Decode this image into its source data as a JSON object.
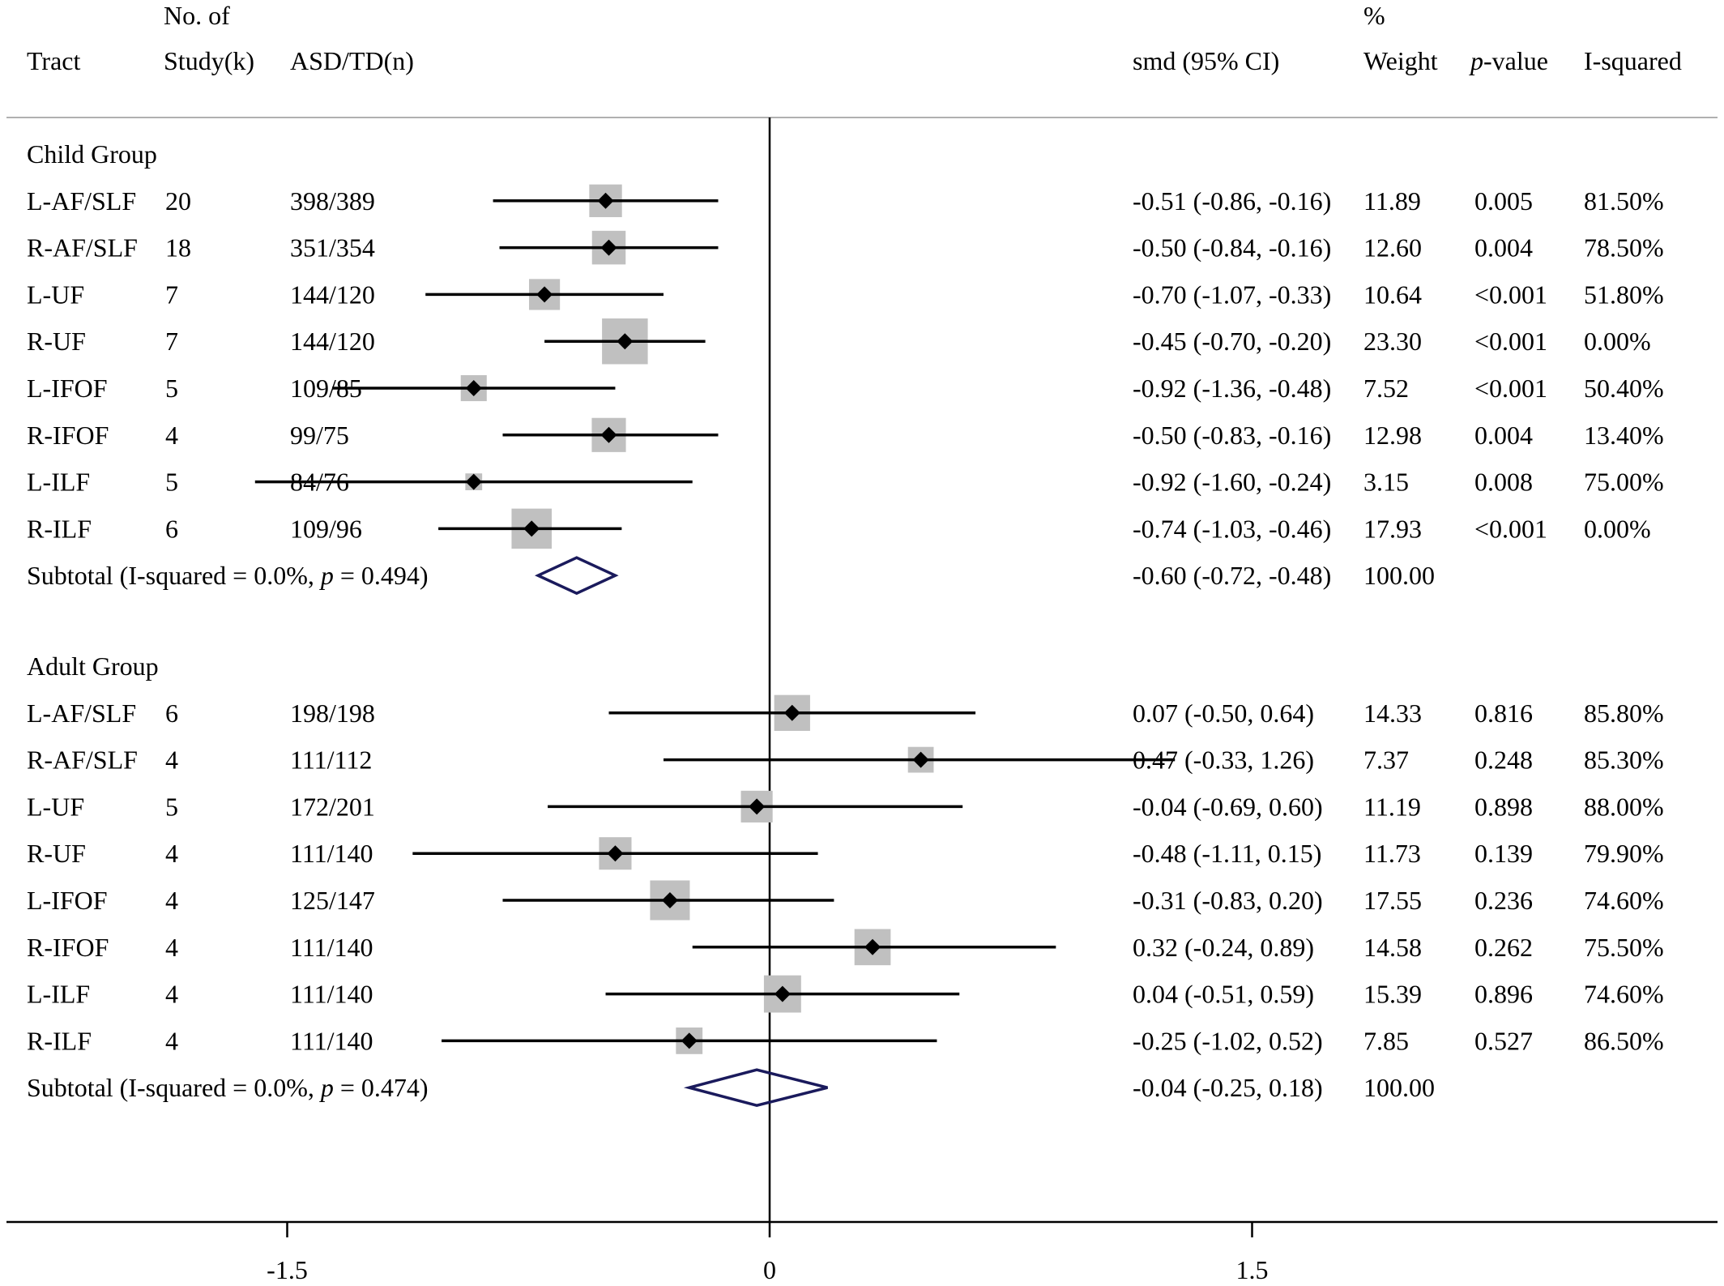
{
  "chart_data": {
    "type": "forest",
    "header": {
      "tract": "Tract",
      "num_studies_line1": "No. of",
      "num_studies_line2": "Study(k)",
      "sample": "ASD/TD(n)",
      "smd": "smd (95% CI)",
      "weight_line1": "%",
      "weight_line2": "Weight",
      "pvalue_italic": "p",
      "pvalue_rest": "-value",
      "isquared": "I-squared"
    },
    "x_axis": {
      "ticks": [
        -1.5,
        0,
        1.5
      ],
      "tick_labels": [
        "-1.5",
        "0",
        "1.5"
      ]
    },
    "colors": {
      "marker_box": "#c0c0c0",
      "point": "#000000",
      "diamond": "#1a1a5c"
    },
    "groups": [
      {
        "name": "Child Group",
        "rows": [
          {
            "tract": "L-AF/SLF",
            "k": "20",
            "n": "398/389",
            "smd": -0.51,
            "lo": -0.86,
            "hi": -0.16,
            "ci_text": "-0.51 (-0.86, -0.16)",
            "weight": 11.89,
            "weight_text": "11.89",
            "p": "0.005",
            "i2": "81.50%"
          },
          {
            "tract": "R-AF/SLF",
            "k": "18",
            "n": "351/354",
            "smd": -0.5,
            "lo": -0.84,
            "hi": -0.16,
            "ci_text": "-0.50 (-0.84, -0.16)",
            "weight": 12.6,
            "weight_text": "12.60",
            "p": "0.004",
            "i2": "78.50%"
          },
          {
            "tract": "L-UF",
            "k": "7",
            "n": "144/120",
            "smd": -0.7,
            "lo": -1.07,
            "hi": -0.33,
            "ci_text": "-0.70 (-1.07, -0.33)",
            "weight": 10.64,
            "weight_text": "10.64",
            "p": "<0.001",
            "i2": "51.80%"
          },
          {
            "tract": "R-UF",
            "k": "7",
            "n": "144/120",
            "smd": -0.45,
            "lo": -0.7,
            "hi": -0.2,
            "ci_text": "-0.45 (-0.70, -0.20)",
            "weight": 23.3,
            "weight_text": "23.30",
            "p": "<0.001",
            "i2": "0.00%"
          },
          {
            "tract": "L-IFOF",
            "k": "5",
            "n": "109/85",
            "smd": -0.92,
            "lo": -1.36,
            "hi": -0.48,
            "ci_text": "-0.92 (-1.36, -0.48)",
            "weight": 7.52,
            "weight_text": "7.52",
            "p": "<0.001",
            "i2": "50.40%"
          },
          {
            "tract": "R-IFOF",
            "k": "4",
            "n": "99/75",
            "smd": -0.5,
            "lo": -0.83,
            "hi": -0.16,
            "ci_text": "-0.50 (-0.83, -0.16)",
            "weight": 12.98,
            "weight_text": "12.98",
            "p": "0.004",
            "i2": "13.40%"
          },
          {
            "tract": "L-ILF",
            "k": "5",
            "n": "84/76",
            "smd": -0.92,
            "lo": -1.6,
            "hi": -0.24,
            "ci_text": "-0.92 (-1.60, -0.24)",
            "weight": 3.15,
            "weight_text": "3.15",
            "p": "0.008",
            "i2": "75.00%"
          },
          {
            "tract": "R-ILF",
            "k": "6",
            "n": "109/96",
            "smd": -0.74,
            "lo": -1.03,
            "hi": -0.46,
            "ci_text": "-0.74 (-1.03, -0.46)",
            "weight": 17.93,
            "weight_text": "17.93",
            "p": "<0.001",
            "i2": "0.00%"
          }
        ],
        "subtotal": {
          "label": "Subtotal",
          "het_prefix": "(I-squared = 0.0%, ",
          "het_p": "p",
          "het_suffix": " = 0.494)",
          "smd": -0.6,
          "lo": -0.72,
          "hi": -0.48,
          "ci_text": "-0.60 (-0.72, -0.48)",
          "weight_text": "100.00"
        }
      },
      {
        "name": "Adult Group",
        "rows": [
          {
            "tract": "L-AF/SLF",
            "k": "6",
            "n": "198/198",
            "smd": 0.07,
            "lo": -0.5,
            "hi": 0.64,
            "ci_text": "0.07 (-0.50, 0.64)",
            "weight": 14.33,
            "weight_text": "14.33",
            "p": "0.816",
            "i2": "85.80%"
          },
          {
            "tract": "R-AF/SLF",
            "k": "4",
            "n": "111/112",
            "smd": 0.47,
            "lo": -0.33,
            "hi": 1.26,
            "ci_text": "0.47 (-0.33, 1.26)",
            "weight": 7.37,
            "weight_text": "7.37",
            "p": "0.248",
            "i2": "85.30%"
          },
          {
            "tract": "L-UF",
            "k": "5",
            "n": "172/201",
            "smd": -0.04,
            "lo": -0.69,
            "hi": 0.6,
            "ci_text": "-0.04 (-0.69, 0.60)",
            "weight": 11.19,
            "weight_text": "11.19",
            "p": "0.898",
            "i2": "88.00%"
          },
          {
            "tract": "R-UF",
            "k": "4",
            "n": "111/140",
            "smd": -0.48,
            "lo": -1.11,
            "hi": 0.15,
            "ci_text": "-0.48 (-1.11, 0.15)",
            "weight": 11.73,
            "weight_text": "11.73",
            "p": "0.139",
            "i2": "79.90%"
          },
          {
            "tract": "L-IFOF",
            "k": "4",
            "n": "125/147",
            "smd": -0.31,
            "lo": -0.83,
            "hi": 0.2,
            "ci_text": "-0.31 (-0.83, 0.20)",
            "weight": 17.55,
            "weight_text": "17.55",
            "p": "0.236",
            "i2": "74.60%"
          },
          {
            "tract": "R-IFOF",
            "k": "4",
            "n": "111/140",
            "smd": 0.32,
            "lo": -0.24,
            "hi": 0.89,
            "ci_text": "0.32 (-0.24, 0.89)",
            "weight": 14.58,
            "weight_text": "14.58",
            "p": "0.262",
            "i2": "75.50%"
          },
          {
            "tract": "L-ILF",
            "k": "4",
            "n": "111/140",
            "smd": 0.04,
            "lo": -0.51,
            "hi": 0.59,
            "ci_text": "0.04 (-0.51, 0.59)",
            "weight": 15.39,
            "weight_text": "15.39",
            "p": "0.896",
            "i2": "74.60%"
          },
          {
            "tract": "R-ILF",
            "k": "4",
            "n": "111/140",
            "smd": -0.25,
            "lo": -1.02,
            "hi": 0.52,
            "ci_text": "-0.25 (-1.02, 0.52)",
            "weight": 7.85,
            "weight_text": "7.85",
            "p": "0.527",
            "i2": "86.50%"
          }
        ],
        "subtotal": {
          "label": "Subtotal",
          "het_prefix": "(I-squared = 0.0%, ",
          "het_p": "p",
          "het_suffix": " = 0.474)",
          "smd": -0.04,
          "lo": -0.25,
          "hi": 0.18,
          "ci_text": "-0.04 (-0.25, 0.18)",
          "weight_text": "100.00"
        }
      }
    ]
  }
}
